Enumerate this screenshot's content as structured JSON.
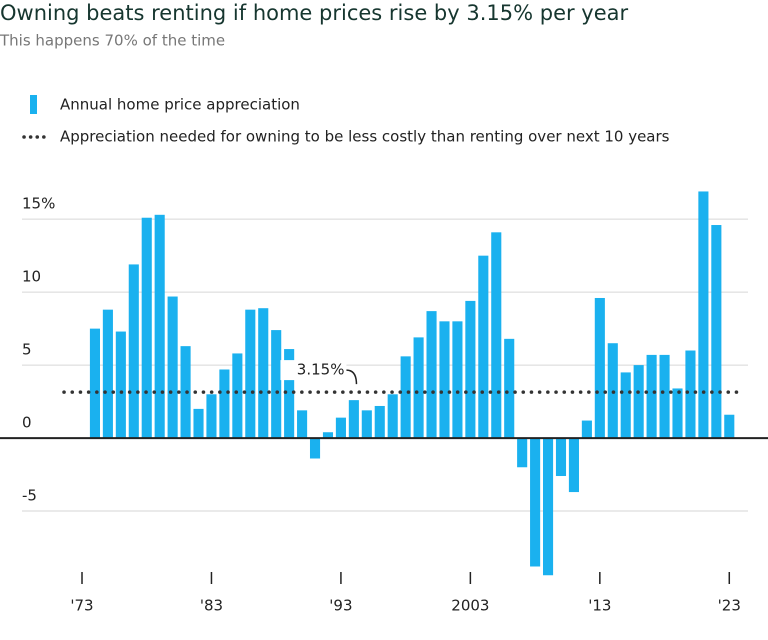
{
  "chart_data": {
    "type": "bar",
    "title": "Owning beats renting if home prices rise by 3.15% per year",
    "subtitle": "This happens 70% of the time",
    "x": [
      1974,
      1975,
      1976,
      1977,
      1978,
      1979,
      1980,
      1981,
      1982,
      1983,
      1984,
      1985,
      1986,
      1987,
      1988,
      1989,
      1990,
      1991,
      1992,
      1993,
      1994,
      1995,
      1996,
      1997,
      1998,
      1999,
      2000,
      2001,
      2002,
      2003,
      2004,
      2005,
      2006,
      2007,
      2008,
      2009,
      2010,
      2011,
      2012,
      2013,
      2014,
      2015,
      2016,
      2017,
      2018,
      2019,
      2020,
      2021,
      2022,
      2023
    ],
    "series": [
      {
        "name": "Annual home price appreciation",
        "color": "#1ab1ef",
        "values": [
          7.5,
          8.8,
          7.3,
          11.9,
          15.1,
          15.3,
          9.7,
          6.3,
          2.0,
          3.0,
          4.7,
          5.8,
          8.8,
          8.9,
          7.4,
          6.1,
          1.9,
          -1.4,
          0.4,
          1.4,
          2.6,
          1.9,
          2.2,
          3.0,
          5.6,
          6.9,
          8.7,
          8.0,
          8.0,
          9.4,
          12.5,
          14.1,
          6.8,
          -2.0,
          -8.8,
          -9.4,
          -2.6,
          -3.7,
          1.2,
          9.6,
          6.5,
          4.5,
          5.0,
          5.7,
          5.7,
          3.4,
          6.0,
          16.9,
          14.6,
          1.6
        ]
      }
    ],
    "reference_line": {
      "name": "Appreciation needed for owning to be less costly than renting over next 10 years",
      "value": 3.15,
      "label": "3.15%",
      "color": "#333333"
    },
    "xlim": [
      1971.3,
      2024.6
    ],
    "xticks": [
      {
        "value": 1973,
        "label": "'73"
      },
      {
        "value": 1983,
        "label": "'83"
      },
      {
        "value": 1993,
        "label": "'93"
      },
      2003,
      {
        "value": 2013,
        "label": "'13"
      },
      {
        "value": 2023,
        "label": "'23"
      }
    ],
    "ylim": [
      -10,
      17
    ],
    "yticks": [
      -5,
      0,
      5,
      10,
      {
        "value": 15,
        "label": "15%"
      }
    ],
    "grid": true
  }
}
